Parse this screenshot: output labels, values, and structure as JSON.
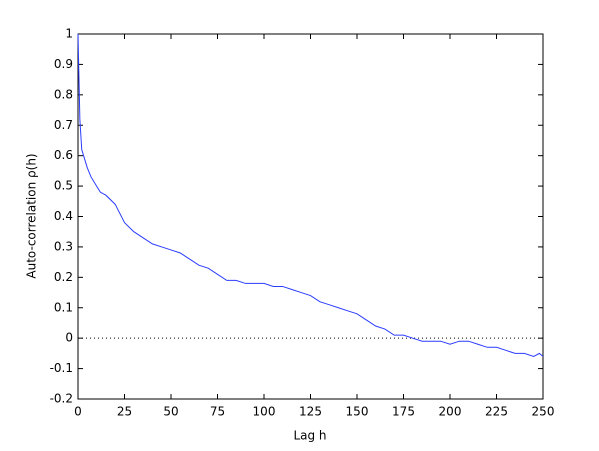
{
  "chart_data": {
    "type": "line",
    "xlabel": "Lag h",
    "ylabel": "Auto-correlation ρ(h)",
    "x": [
      0,
      1,
      2,
      3,
      5,
      7,
      10,
      12,
      15,
      20,
      25,
      30,
      35,
      40,
      45,
      50,
      55,
      60,
      65,
      70,
      75,
      80,
      85,
      90,
      95,
      100,
      105,
      110,
      115,
      120,
      125,
      130,
      135,
      140,
      145,
      150,
      155,
      160,
      165,
      170,
      175,
      180,
      185,
      190,
      195,
      200,
      205,
      210,
      215,
      220,
      225,
      230,
      235,
      240,
      245,
      248,
      250
    ],
    "values": [
      1.0,
      0.72,
      0.62,
      0.6,
      0.56,
      0.53,
      0.5,
      0.48,
      0.47,
      0.44,
      0.38,
      0.35,
      0.33,
      0.31,
      0.3,
      0.29,
      0.28,
      0.26,
      0.24,
      0.23,
      0.21,
      0.19,
      0.19,
      0.18,
      0.18,
      0.18,
      0.17,
      0.17,
      0.16,
      0.15,
      0.14,
      0.12,
      0.11,
      0.1,
      0.09,
      0.08,
      0.06,
      0.04,
      0.03,
      0.01,
      0.01,
      0.0,
      -0.01,
      -0.01,
      -0.01,
      -0.02,
      -0.01,
      -0.01,
      -0.02,
      -0.03,
      -0.03,
      -0.04,
      -0.05,
      -0.05,
      -0.06,
      -0.05,
      -0.06
    ],
    "color": "#2b3cff",
    "reference_line": 0,
    "xlim": [
      0,
      250
    ],
    "xticks": [
      0,
      25,
      50,
      75,
      100,
      125,
      150,
      175,
      200,
      225,
      250
    ],
    "ylim": [
      -0.2,
      1
    ],
    "yticks": [
      -0.2,
      -0.1,
      0,
      0.1,
      0.2,
      0.3,
      0.4,
      0.5,
      0.6,
      0.7,
      0.8,
      0.9,
      1
    ]
  }
}
